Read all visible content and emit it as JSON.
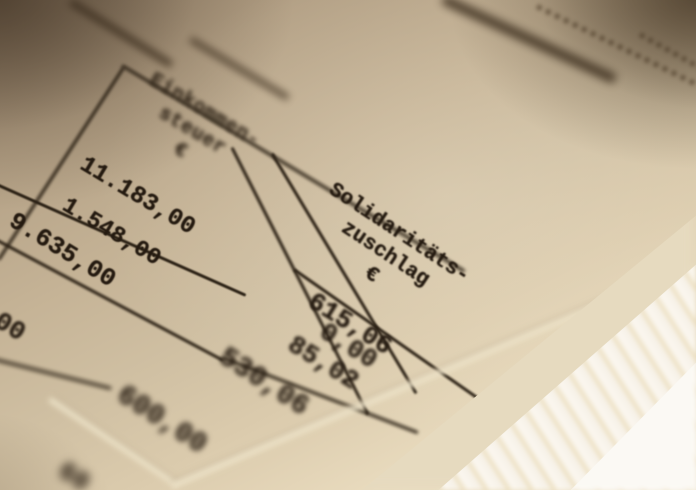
{
  "document": {
    "kind": "tax-statement-table-photo",
    "table": {
      "columns": [
        {
          "id": "einkommensteuer",
          "header_lines": [
            "Einkommen-",
            "steuer",
            "€"
          ]
        },
        {
          "id": "solidaritaetszuschlag",
          "header_lines": [
            "Solidaritäts-",
            "zuschlag",
            "€"
          ]
        }
      ],
      "einkommensteuer_values": [
        "11.183,00",
        "1.548,00",
        "9.635,00"
      ],
      "einkommensteuer_partial_value": "00",
      "solidaritaetszuschlag_values": [
        "615,06",
        "0,00",
        "85,02"
      ],
      "solidaritaetszuschlag_subtotal": "530,06",
      "value_below_table": "600,00",
      "bottom_edge_fragment": "60"
    },
    "currency_symbol": "€"
  },
  "colors": {
    "paper": "#c5b396",
    "paper_shadow": "#94816a",
    "paper_highlight": "#f2e7cd",
    "ink": "#241a10",
    "table_line": "#2b2115",
    "fold_highlight": "#f0e6cc",
    "page_edge": "#f7f2e9",
    "page_edge_stripe": "#ecdfc0"
  }
}
